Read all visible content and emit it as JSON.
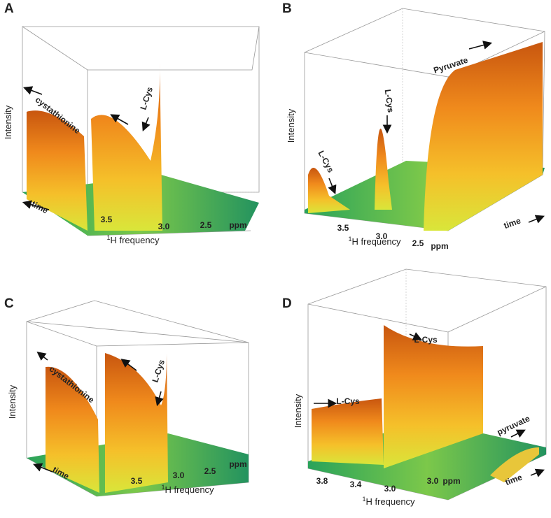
{
  "panels": [
    {
      "letter": "A",
      "y_label": "Intensity",
      "x_label": {
        "sup": "1",
        "text": "H frequency"
      },
      "x_ticks": [
        "3.5",
        "3.0",
        "2.5"
      ],
      "x_unit": "ppm",
      "annotations": [
        "cystathionine",
        "L-Cys",
        "time"
      ]
    },
    {
      "letter": "B",
      "y_label": "Intensity",
      "x_label": {
        "sup": "1",
        "text": "H frequency"
      },
      "x_ticks": [
        "3.5",
        "3.0",
        "2.5"
      ],
      "x_unit": "ppm",
      "annotations": [
        "Pyruvate",
        "L-Cys",
        "L-Cys",
        "time"
      ]
    },
    {
      "letter": "C",
      "y_label": "Intensity",
      "x_label": {
        "sup": "1",
        "text": "H frequency"
      },
      "x_ticks": [
        "3.5",
        "3.0",
        "2.5"
      ],
      "x_unit": "ppm",
      "annotations": [
        "cystathionine",
        "L-Cys",
        "time"
      ]
    },
    {
      "letter": "D",
      "y_label": "Intensity",
      "x_label": {
        "sup": "1",
        "text": "H frequency"
      },
      "x_ticks": [
        "3.8",
        "3.4",
        "3.0",
        "3.0"
      ],
      "x_unit": "ppm",
      "annotations": [
        "L-Cys",
        "L-Cys",
        "pyruvate",
        "time"
      ]
    }
  ]
}
